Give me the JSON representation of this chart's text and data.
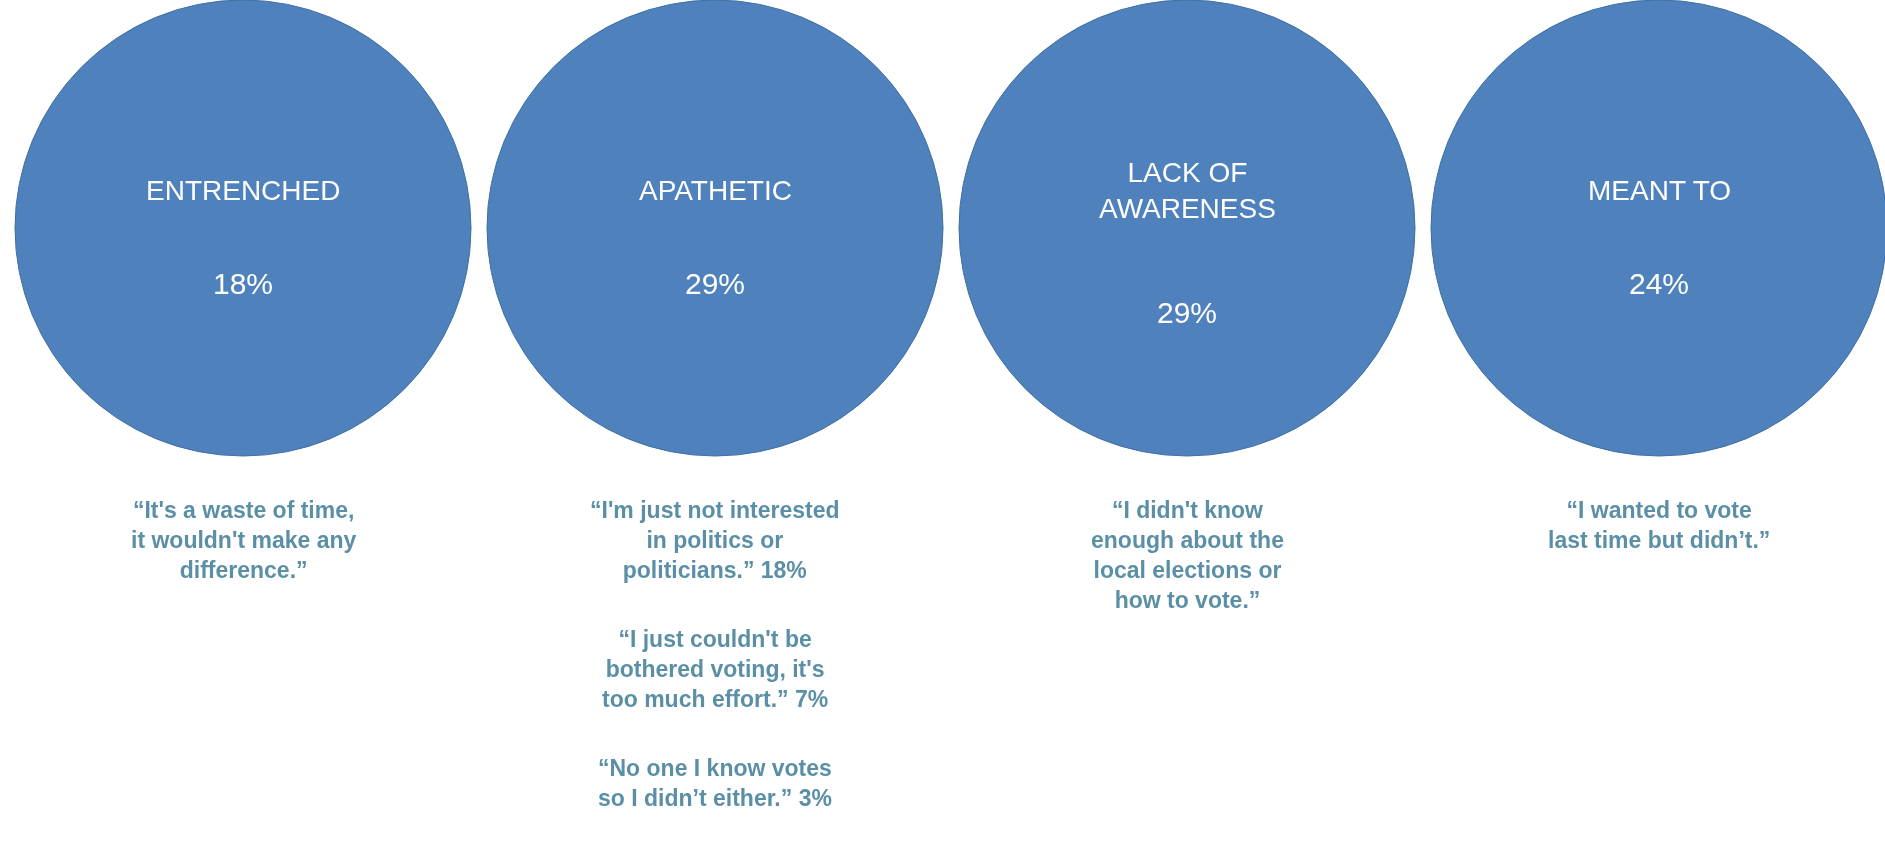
{
  "chart_data": {
    "type": "other",
    "categories": [
      "ENTRENCHED",
      "APATHETIC",
      "LACK OF\nAWARENESS",
      "MEANT TO"
    ],
    "values": [
      18,
      29,
      29,
      24
    ],
    "value_labels": [
      "18%",
      "29%",
      "29%",
      "24%"
    ],
    "color": "#4f81bd",
    "annotations": [
      {
        "text": "“It's a waste of time,\nit wouldn't make any\ndifference.”",
        "x": "ENTRENCHED"
      },
      {
        "text": "“I'm just not interested\nin politics or\npoliticians.” 18%",
        "x": "APATHETIC"
      },
      {
        "text": "“I just couldn't be\nbothered voting, it's\ntoo much effort.” 7%",
        "x": "APATHETIC"
      },
      {
        "text": "“No one I know votes\nso I didn’t either.” 3%",
        "x": "APATHETIC"
      },
      {
        "text": "“I didn't know\nenough about the\nlocal elections or\nhow to vote.”",
        "x": "LACK OF\nAWARENESS"
      },
      {
        "text": "“I wanted to vote\nlast time but didn’t.”",
        "x": "MEANT TO"
      }
    ]
  }
}
